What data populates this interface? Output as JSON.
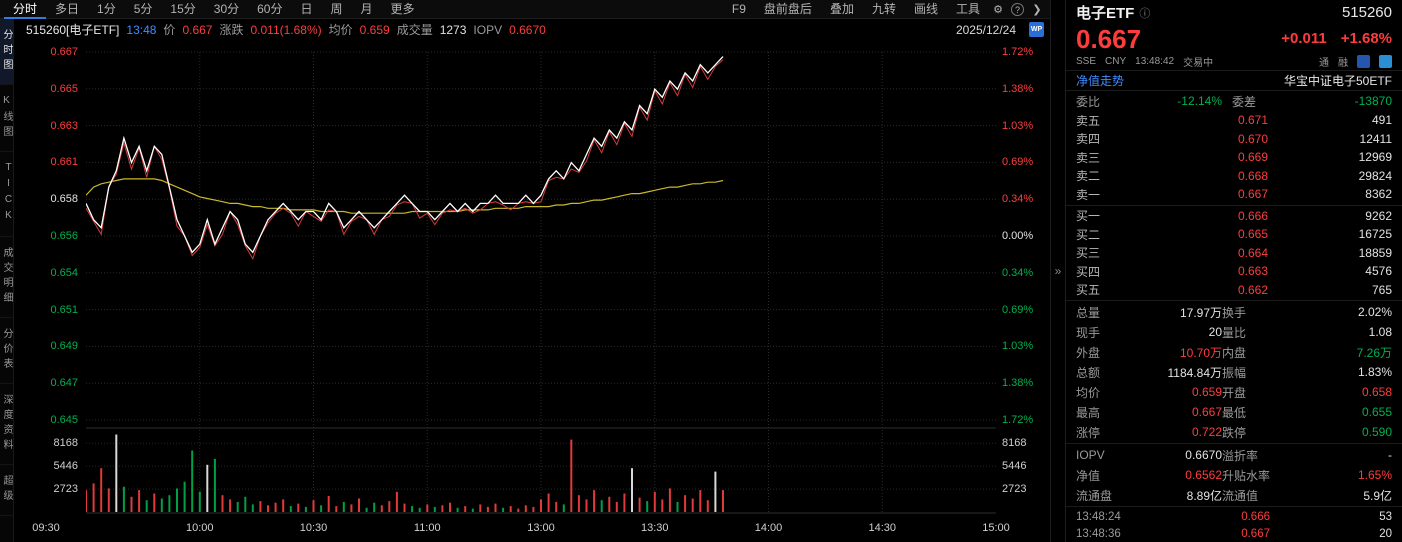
{
  "topbar": {
    "left_items": [
      "分时",
      "多日",
      "1分",
      "5分",
      "15分",
      "30分",
      "60分",
      "日",
      "周",
      "月",
      "更多"
    ],
    "active_item": "分时",
    "right_items": [
      "F9",
      "盘前盘后",
      "叠加",
      "九转",
      "画线",
      "工具"
    ],
    "gear_icon": "⚙",
    "help_icon": "?",
    "chevron_icon": "❯"
  },
  "sidebar": {
    "items": [
      "分时图",
      "K线图",
      "TICK",
      "成交明细",
      "分价表",
      "深度资料",
      "超级"
    ],
    "active": "分时图"
  },
  "chart_header": {
    "code_name": "515260[电子ETF]",
    "time": "13:48",
    "price_label": "价",
    "price": "0.667",
    "change_label": "涨跌",
    "change": "0.011(1.68%)",
    "avg_label": "均价",
    "avg": "0.659",
    "vol_label": "成交量",
    "vol": "1273",
    "iopv_label": "IOPV",
    "iopv": "0.6670",
    "date": "2025/12/24",
    "wp_badge": "WP"
  },
  "axes": {
    "price_labels": [
      "0.667",
      "0.665",
      "0.663",
      "0.661",
      "0.658",
      "0.656",
      "0.654",
      "0.651",
      "0.649",
      "0.647",
      "0.645"
    ],
    "price_colors": [
      "r",
      "r",
      "r",
      "r",
      "w",
      "g",
      "g",
      "g",
      "g",
      "g",
      "g"
    ],
    "pct_labels": [
      "1.72%",
      "1.38%",
      "1.03%",
      "0.69%",
      "0.34%",
      "0.00%",
      "0.34%",
      "0.69%",
      "1.03%",
      "1.38%",
      "1.72%"
    ],
    "pct_colors": [
      "r",
      "r",
      "r",
      "r",
      "r",
      "w",
      "g",
      "g",
      "g",
      "g",
      "g"
    ],
    "vol_labels": [
      "8168",
      "5446",
      "2723"
    ],
    "time_labels": [
      "09:30",
      "10:00",
      "10:30",
      "11:00",
      "13:00",
      "13:30",
      "14:00",
      "14:30",
      "15:00"
    ]
  },
  "chart_data": {
    "type": "line",
    "title": "515260 电子ETF 分时图",
    "prev_close": 0.656,
    "axis_price_max": 0.66728,
    "axis_price_min": 0.64472,
    "y_max_pct": 1.72,
    "y_min_pct": -1.72,
    "total_minutes": 240,
    "minutes_per_point": 2,
    "session_break": "11:30/13:00",
    "vol_axis": [
      2723,
      5446,
      8168
    ],
    "vol_max": 9500,
    "price": [
      0.658,
      0.657,
      0.6565,
      0.659,
      0.66,
      0.662,
      0.6605,
      0.6615,
      0.66,
      0.6615,
      0.661,
      0.659,
      0.657,
      0.656,
      0.655,
      0.6555,
      0.657,
      0.6555,
      0.6565,
      0.6575,
      0.657,
      0.6555,
      0.655,
      0.656,
      0.657,
      0.6575,
      0.658,
      0.6575,
      0.657,
      0.6575,
      0.6575,
      0.657,
      0.658,
      0.6575,
      0.6565,
      0.657,
      0.6575,
      0.657,
      0.6565,
      0.657,
      0.6575,
      0.658,
      0.6585,
      0.658,
      0.6575,
      0.6575,
      0.657,
      0.6575,
      0.658,
      0.6575,
      0.658,
      0.6575,
      0.658,
      0.658,
      0.6585,
      0.658,
      0.658,
      0.658,
      0.6585,
      0.658,
      0.6585,
      0.6595,
      0.66,
      0.6595,
      0.6605,
      0.66,
      0.661,
      0.662,
      0.6615,
      0.6625,
      0.662,
      0.663,
      0.6625,
      0.664,
      0.6635,
      0.665,
      0.6645,
      0.6655,
      0.665,
      0.666,
      0.6655,
      0.6665,
      0.666,
      0.6665,
      0.667
    ],
    "avg": [
      0.6585,
      0.659,
      0.6592,
      0.6593,
      0.6594,
      0.6595,
      0.6595,
      0.6595,
      0.6595,
      0.6595,
      0.6594,
      0.6592,
      0.659,
      0.6588,
      0.6586,
      0.6584,
      0.6583,
      0.6582,
      0.6581,
      0.658,
      0.658,
      0.6579,
      0.6578,
      0.6578,
      0.6577,
      0.6577,
      0.6577,
      0.6576,
      0.6576,
      0.6576,
      0.6576,
      0.6575,
      0.6575,
      0.6575,
      0.6575,
      0.6574,
      0.6574,
      0.6574,
      0.6574,
      0.6574,
      0.6574,
      0.6574,
      0.6574,
      0.6575,
      0.6575,
      0.6575,
      0.6575,
      0.6575,
      0.6575,
      0.6575,
      0.6576,
      0.6576,
      0.6576,
      0.6576,
      0.6577,
      0.6577,
      0.6577,
      0.6577,
      0.6578,
      0.6578,
      0.6578,
      0.6578,
      0.6579,
      0.6579,
      0.658,
      0.658,
      0.6581,
      0.6582,
      0.6582,
      0.6583,
      0.6584,
      0.6585,
      0.6586,
      0.6586,
      0.6587,
      0.6588,
      0.6589,
      0.659,
      0.659,
      0.6591,
      0.6592,
      0.6592,
      0.6593,
      0.6593,
      0.6594
    ],
    "overlay": [
      0.6577,
      0.6569,
      0.6561,
      0.659,
      0.6598,
      0.6617,
      0.6601,
      0.6614,
      0.6596,
      0.6615,
      0.6607,
      0.6589,
      0.6566,
      0.656,
      0.6548,
      0.6553,
      0.6567,
      0.6554,
      0.6561,
      0.6575,
      0.6567,
      0.6554,
      0.6546,
      0.656,
      0.6568,
      0.6574,
      0.6577,
      0.6574,
      0.6566,
      0.6575,
      0.6572,
      0.6569,
      0.6576,
      0.6575,
      0.6561,
      0.6569,
      0.6572,
      0.657,
      0.6561,
      0.657,
      0.6572,
      0.6579,
      0.6581,
      0.658,
      0.6571,
      0.6574,
      0.6567,
      0.6574,
      0.6576,
      0.6575,
      0.6577,
      0.6574,
      0.6576,
      0.658,
      0.6581,
      0.6579,
      0.6576,
      0.658,
      0.6581,
      0.658,
      0.6581,
      0.6594,
      0.6596,
      0.6595,
      0.6601,
      0.6599,
      0.6606,
      0.6619,
      0.6611,
      0.6624,
      0.6616,
      0.6629,
      0.6621,
      0.6639,
      0.6631,
      0.6649,
      0.6641,
      0.6654,
      0.6646,
      0.6659,
      0.6651,
      0.6664,
      0.6656,
      0.6664,
      0.6668
    ],
    "volume": [
      [
        2600,
        "r"
      ],
      [
        3400,
        "r"
      ],
      [
        5200,
        "r"
      ],
      [
        2800,
        "r"
      ],
      [
        9200,
        "w"
      ],
      [
        3000,
        "g"
      ],
      [
        1800,
        "r"
      ],
      [
        2600,
        "r"
      ],
      [
        1400,
        "g"
      ],
      [
        2200,
        "r"
      ],
      [
        1600,
        "g"
      ],
      [
        2000,
        "g"
      ],
      [
        2800,
        "g"
      ],
      [
        3600,
        "g"
      ],
      [
        7300,
        "g"
      ],
      [
        2400,
        "g"
      ],
      [
        5600,
        "w"
      ],
      [
        6300,
        "g"
      ],
      [
        2000,
        "r"
      ],
      [
        1500,
        "r"
      ],
      [
        1200,
        "g"
      ],
      [
        1800,
        "g"
      ],
      [
        900,
        "g"
      ],
      [
        1300,
        "r"
      ],
      [
        800,
        "r"
      ],
      [
        1100,
        "r"
      ],
      [
        1500,
        "r"
      ],
      [
        700,
        "g"
      ],
      [
        1000,
        "r"
      ],
      [
        600,
        "g"
      ],
      [
        1400,
        "r"
      ],
      [
        800,
        "g"
      ],
      [
        1900,
        "r"
      ],
      [
        700,
        "r"
      ],
      [
        1200,
        "g"
      ],
      [
        900,
        "r"
      ],
      [
        1600,
        "r"
      ],
      [
        500,
        "g"
      ],
      [
        1100,
        "g"
      ],
      [
        800,
        "r"
      ],
      [
        1300,
        "r"
      ],
      [
        2400,
        "r"
      ],
      [
        1000,
        "r"
      ],
      [
        700,
        "g"
      ],
      [
        500,
        "g"
      ],
      [
        900,
        "r"
      ],
      [
        600,
        "g"
      ],
      [
        800,
        "r"
      ],
      [
        1100,
        "r"
      ],
      [
        500,
        "g"
      ],
      [
        700,
        "r"
      ],
      [
        400,
        "g"
      ],
      [
        900,
        "r"
      ],
      [
        600,
        "r"
      ],
      [
        1000,
        "r"
      ],
      [
        500,
        "g"
      ],
      [
        700,
        "r"
      ],
      [
        400,
        "r"
      ],
      [
        800,
        "r"
      ],
      [
        600,
        "r"
      ],
      [
        1500,
        "r"
      ],
      [
        2200,
        "r"
      ],
      [
        1200,
        "r"
      ],
      [
        900,
        "g"
      ],
      [
        8600,
        "r"
      ],
      [
        2000,
        "r"
      ],
      [
        1500,
        "r"
      ],
      [
        2600,
        "r"
      ],
      [
        1400,
        "g"
      ],
      [
        1800,
        "r"
      ],
      [
        1200,
        "r"
      ],
      [
        2200,
        "r"
      ],
      [
        5200,
        "w"
      ],
      [
        1700,
        "r"
      ],
      [
        1300,
        "g"
      ],
      [
        2400,
        "r"
      ],
      [
        1500,
        "r"
      ],
      [
        2800,
        "r"
      ],
      [
        1200,
        "g"
      ],
      [
        2000,
        "r"
      ],
      [
        1600,
        "r"
      ],
      [
        2600,
        "r"
      ],
      [
        1400,
        "r"
      ],
      [
        4800,
        "w"
      ],
      [
        2600,
        "r"
      ]
    ]
  },
  "right_panel": {
    "collapse_arrow": "»",
    "stock_name": "电子ETF",
    "info_icon": "ⓘ",
    "stock_code": "515260",
    "price": "0.667",
    "change": "+0.011",
    "change_pct": "+1.68%",
    "exchange": "SSE",
    "currency": "CNY",
    "time": "13:48:42",
    "status": "交易中",
    "tags": [
      "通",
      "融"
    ],
    "nav_link": "净值走势",
    "fund_name": "华宝中证电子50ETF",
    "weibi_label": "委比",
    "weibi": "-12.14%",
    "weicha_label": "委差",
    "weicha": "-13870",
    "asks": [
      {
        "label": "卖五",
        "price": "0.671",
        "vol": "491"
      },
      {
        "label": "卖四",
        "price": "0.670",
        "vol": "12411"
      },
      {
        "label": "卖三",
        "price": "0.669",
        "vol": "12969"
      },
      {
        "label": "卖二",
        "price": "0.668",
        "vol": "29824"
      },
      {
        "label": "卖一",
        "price": "0.667",
        "vol": "8362"
      }
    ],
    "bids": [
      {
        "label": "买一",
        "price": "0.666",
        "vol": "9262"
      },
      {
        "label": "买二",
        "price": "0.665",
        "vol": "16725"
      },
      {
        "label": "买三",
        "price": "0.664",
        "vol": "18859"
      },
      {
        "label": "买四",
        "price": "0.663",
        "vol": "4576"
      },
      {
        "label": "买五",
        "price": "0.662",
        "vol": "765"
      }
    ],
    "stats": [
      [
        {
          "l": "总量",
          "v": "17.97万",
          "c": "w"
        },
        {
          "l": "换手",
          "v": "2.02%",
          "c": "w"
        }
      ],
      [
        {
          "l": "现手",
          "v": "20",
          "c": "w"
        },
        {
          "l": "量比",
          "v": "1.08",
          "c": "w"
        }
      ],
      [
        {
          "l": "外盘",
          "v": "10.70万",
          "c": "r"
        },
        {
          "l": "内盘",
          "v": "7.26万",
          "c": "g"
        }
      ],
      [
        {
          "l": "总额",
          "v": "1184.84万",
          "c": "w"
        },
        {
          "l": "振幅",
          "v": "1.83%",
          "c": "w"
        }
      ],
      [
        {
          "l": "均价",
          "v": "0.659",
          "c": "r"
        },
        {
          "l": "开盘",
          "v": "0.658",
          "c": "r"
        }
      ],
      [
        {
          "l": "最高",
          "v": "0.667",
          "c": "r"
        },
        {
          "l": "最低",
          "v": "0.655",
          "c": "g"
        }
      ],
      [
        {
          "l": "涨停",
          "v": "0.722",
          "c": "r"
        },
        {
          "l": "跌停",
          "v": "0.590",
          "c": "g"
        }
      ]
    ],
    "iopv_rows": [
      [
        {
          "l": "IOPV",
          "v": "0.6670",
          "c": "w"
        },
        {
          "l": "溢折率",
          "v": "-",
          "c": "w"
        }
      ],
      [
        {
          "l": "净值",
          "v": "0.6562",
          "c": "r"
        },
        {
          "l": "升贴水率",
          "v": "1.65%",
          "c": "r"
        }
      ],
      [
        {
          "l": "流通盘",
          "v": "8.89亿",
          "c": "w"
        },
        {
          "l": "流通值",
          "v": "5.9亿",
          "c": "w"
        }
      ]
    ],
    "ticks": [
      {
        "time": "13:48:24",
        "price": "0.666",
        "qty": "53"
      },
      {
        "time": "13:48:36",
        "price": "0.667",
        "qty": "20"
      }
    ]
  }
}
